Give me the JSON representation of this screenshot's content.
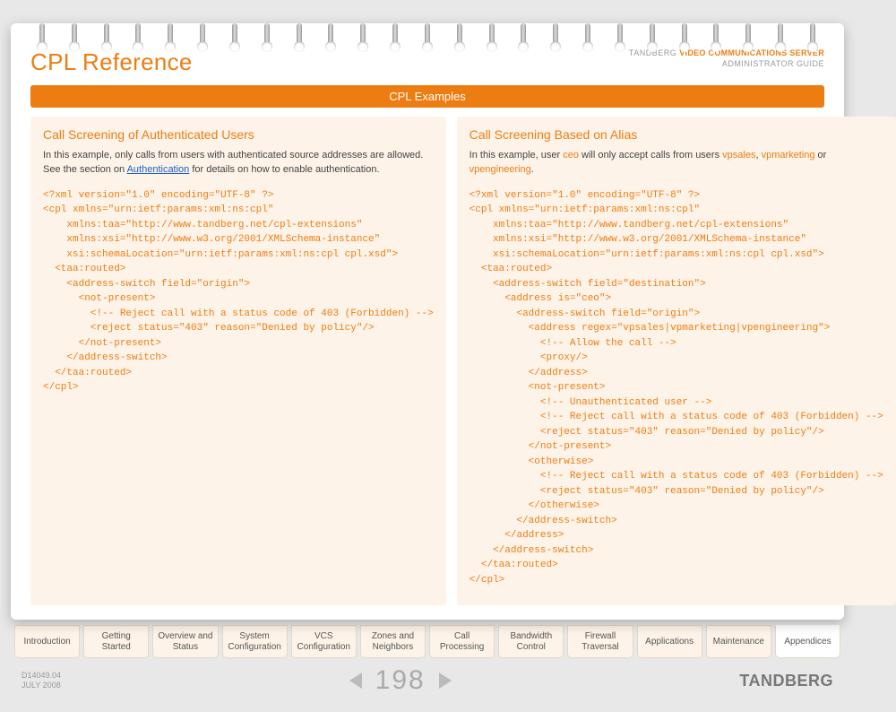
{
  "page_title": "CPL Reference",
  "header_right": {
    "line1_grey": "TANDBERG ",
    "line1_orange": "VIDEO COMMUNICATIONS SERVER",
    "line2": "ADMINISTRATOR GUIDE"
  },
  "bar_label": "CPL Examples",
  "left": {
    "title": "Call Screening of Authenticated Users",
    "p1_a": "In this example, only calls from  users with authenticated source addresses are allowed. See the section on ",
    "p1_link": "Authentication",
    "p1_b": " for details on how to enable authentication.",
    "code": "<?xml version=\"1.0\" encoding=\"UTF-8\" ?>\n<cpl xmlns=\"urn:ietf:params:xml:ns:cpl\"\n    xmlns:taa=\"http://www.tandberg.net/cpl-extensions\"\n    xmlns:xsi=\"http://www.w3.org/2001/XMLSchema-instance\"\n    xsi:schemaLocation=\"urn:ietf:params:xml:ns:cpl cpl.xsd\">\n  <taa:routed>\n    <address-switch field=\"origin\">\n      <not-present>\n        <!-- Reject call with a status code of 403 (Forbidden) -->\n        <reject status=\"403\" reason=\"Denied by policy\"/>\n      </not-present>\n    </address-switch>\n  </taa:routed>\n</cpl>"
  },
  "right": {
    "title": "Call Screening Based on Alias",
    "p_a": "In this example, user ",
    "p_ceo": "ceo",
    "p_b": " will only accept calls from users ",
    "p_u1": "vpsales",
    "p_c": ", ",
    "p_u2": "vpmarketing",
    "p_d": " or ",
    "p_u3": "vpengineering",
    "p_e": ".",
    "code": "<?xml version=\"1.0\" encoding=\"UTF-8\" ?>\n<cpl xmlns=\"urn:ietf:params:xml:ns:cpl\"\n    xmlns:taa=\"http://www.tandberg.net/cpl-extensions\"\n    xmlns:xsi=\"http://www.w3.org/2001/XMLSchema-instance\"\n    xsi:schemaLocation=\"urn:ietf:params:xml:ns:cpl cpl.xsd\">\n  <taa:routed>\n    <address-switch field=\"destination\">\n      <address is=\"ceo\">\n        <address-switch field=\"origin\">\n          <address regex=\"vpsales|vpmarketing|vpengineering\">\n            <!-- Allow the call -->\n            <proxy/>\n          </address>\n          <not-present>\n            <!-- Unauthenticated user -->\n            <!-- Reject call with a status code of 403 (Forbidden) -->\n            <reject status=\"403\" reason=\"Denied by policy\"/>\n          </not-present>\n          <otherwise>\n            <!-- Reject call with a status code of 403 (Forbidden) -->\n            <reject status=\"403\" reason=\"Denied by policy\"/>\n          </otherwise>\n        </address-switch>\n      </address>\n    </address-switch>\n  </taa:routed>\n</cpl>"
  },
  "tabs": {
    "t0": "Introduction",
    "t1": "Getting Started",
    "t2": "Overview and\nStatus",
    "t3": "System\nConfiguration",
    "t4": "VCS\nConfiguration",
    "t5": "Zones and\nNeighbors",
    "t6": "Call\nProcessing",
    "t7": "Bandwidth\nControl",
    "t8": "Firewall\nTraversal",
    "t9": "Applications",
    "t10": "Maintenance",
    "t11": "Appendices"
  },
  "footer": {
    "doc_id": "D14049.04",
    "date": "JULY 2008",
    "page_num": "198",
    "brand": "TANDBERG"
  },
  "colors": {
    "accent": "#ee7d11",
    "panel_bg": "#fdf3e8",
    "link": "#1a5fc4",
    "grey_text": "#999"
  }
}
